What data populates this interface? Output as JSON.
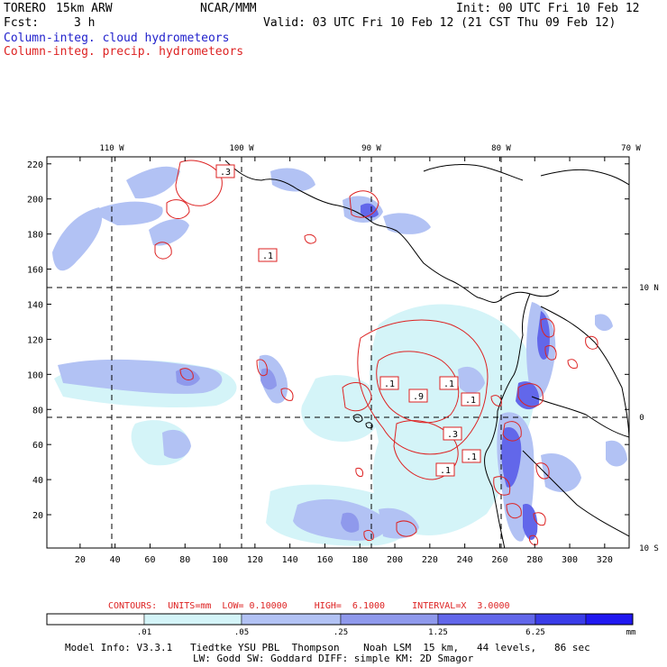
{
  "header": {
    "model": "TORERO",
    "resolution": "15km ARW",
    "institution": "NCAR/MMM",
    "init": "Init: 00 UTC Fri 10 Feb 12",
    "fcst_label": "Fcst:",
    "fcst_value": "3 h",
    "valid": "Valid: 03 UTC Fri 10 Feb 12 (21 CST Thu 09 Feb 12)",
    "field_cloud": "Column-integ. cloud hydrometeors",
    "field_precip": "Column-integ. precip. hydrometeors"
  },
  "map": {
    "lon_labels": [
      "110 W",
      "100 W",
      "90 W",
      "80 W",
      "70 W"
    ],
    "lat_labels": [
      "10 N",
      "0",
      "10 S"
    ],
    "x_ticks": [
      "20",
      "40",
      "60",
      "80",
      "100",
      "120",
      "140",
      "160",
      "180",
      "200",
      "220",
      "240",
      "260",
      "280",
      "300",
      "320"
    ],
    "y_ticks": [
      "20",
      "40",
      "60",
      "80",
      "100",
      "120",
      "140",
      "160",
      "180",
      "200",
      "220"
    ],
    "contour_labels": [
      ".3",
      ".1",
      ".1",
      ".1",
      ".9",
      ".1",
      ".3",
      ".1",
      ".1"
    ]
  },
  "contours": {
    "title": "CONTOURS:  UNITS=mm  LOW= 0.10000     HIGH=  6.1000     INTERVAL=X  3.0000"
  },
  "colorbar": {
    "labels": [
      ".01",
      ".05",
      ".25",
      "1.25",
      "6.25"
    ],
    "unit": "mm",
    "colors": [
      "#ffffff",
      "#d4f4f8",
      "#b2c2f4",
      "#8f99ec",
      "#6267ea",
      "#3a3ce8",
      "#2018f0"
    ]
  },
  "footer": {
    "line1": "Model Info: V3.3.1   Tiedtke YSU PBL  Thompson    Noah LSM  15 km,   44 levels,   86 sec",
    "line2": "LW: Godd SW: Goddard DIFF: simple KM: 2D Smagor"
  }
}
